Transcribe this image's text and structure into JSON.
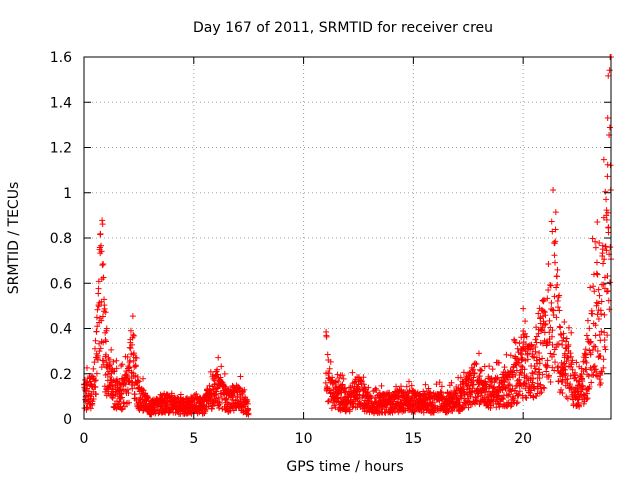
{
  "chart_data": {
    "type": "scatter",
    "title": "Day 167 of 2011, SRMTID for receiver creu",
    "xlabel": "GPS time / hours",
    "ylabel": "SRMTID / TECUs",
    "xlim": [
      0,
      24
    ],
    "ylim": [
      0,
      1.6
    ],
    "x_ticks": [
      0,
      5,
      10,
      15,
      20
    ],
    "x_tick_labels": [
      "0",
      "5",
      "10",
      "15",
      "20"
    ],
    "y_ticks": [
      0,
      0.2,
      0.4,
      0.6,
      0.8,
      1,
      1.2,
      1.4,
      1.6
    ],
    "y_tick_labels": [
      "0",
      "0.2",
      "0.4",
      "0.6",
      "0.8",
      "1",
      "1.2",
      "1.4",
      "1.6"
    ],
    "grid": true,
    "marker": "plus",
    "color": "#ff0000",
    "series_profile": [
      {
        "x": 0.0,
        "y": 0.12
      },
      {
        "x": 0.3,
        "y": 0.15
      },
      {
        "x": 0.5,
        "y": 0.25
      },
      {
        "x": 0.7,
        "y": 0.55
      },
      {
        "x": 0.8,
        "y": 0.78
      },
      {
        "x": 0.9,
        "y": 0.45
      },
      {
        "x": 1.2,
        "y": 0.2
      },
      {
        "x": 1.6,
        "y": 0.12
      },
      {
        "x": 2.0,
        "y": 0.18
      },
      {
        "x": 2.2,
        "y": 0.38
      },
      {
        "x": 2.4,
        "y": 0.15
      },
      {
        "x": 3.0,
        "y": 0.06
      },
      {
        "x": 3.5,
        "y": 0.09
      },
      {
        "x": 4.5,
        "y": 0.07
      },
      {
        "x": 5.5,
        "y": 0.08
      },
      {
        "x": 6.0,
        "y": 0.18
      },
      {
        "x": 6.5,
        "y": 0.1
      },
      {
        "x": 7.0,
        "y": 0.13
      },
      {
        "x": 7.5,
        "y": 0.05
      },
      {
        "x": 11.0,
        "y": 0.35
      },
      {
        "x": 11.2,
        "y": 0.15
      },
      {
        "x": 12.0,
        "y": 0.1
      },
      {
        "x": 12.5,
        "y": 0.15
      },
      {
        "x": 13.0,
        "y": 0.08
      },
      {
        "x": 14.5,
        "y": 0.1
      },
      {
        "x": 16.0,
        "y": 0.09
      },
      {
        "x": 17.0,
        "y": 0.1
      },
      {
        "x": 17.8,
        "y": 0.2
      },
      {
        "x": 18.5,
        "y": 0.14
      },
      {
        "x": 19.5,
        "y": 0.18
      },
      {
        "x": 20.0,
        "y": 0.3
      },
      {
        "x": 20.5,
        "y": 0.25
      },
      {
        "x": 21.0,
        "y": 0.45
      },
      {
        "x": 21.3,
        "y": 0.5
      },
      {
        "x": 21.5,
        "y": 0.72
      },
      {
        "x": 21.7,
        "y": 0.3
      },
      {
        "x": 22.0,
        "y": 0.28
      },
      {
        "x": 22.5,
        "y": 0.12
      },
      {
        "x": 23.0,
        "y": 0.3
      },
      {
        "x": 23.3,
        "y": 0.6
      },
      {
        "x": 23.5,
        "y": 0.4
      },
      {
        "x": 23.8,
        "y": 0.9
      },
      {
        "x": 24.0,
        "y": 1.5
      }
    ],
    "data_gap_hours": [
      7.5,
      11.0
    ]
  }
}
